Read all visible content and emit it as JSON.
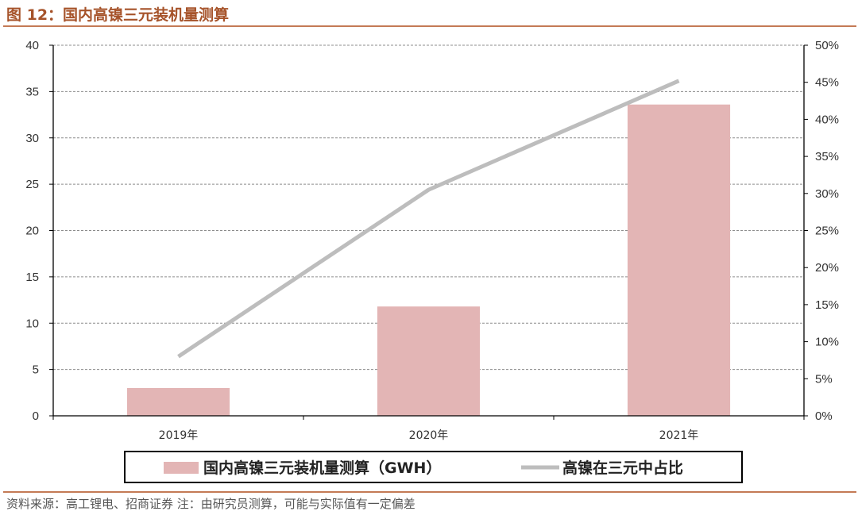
{
  "figure": {
    "title": "图 12：国内高镍三元装机量测算",
    "source": "资料来源：高工锂电、招商证券 注：由研究员测算，可能与实际值有一定偏差"
  },
  "colors": {
    "title": "#a6532a",
    "rule": "#c47a55",
    "bar": "#e3b5b5",
    "line": "#bdbdbd"
  },
  "chart_data": {
    "type": "bar",
    "categories": [
      "2019年",
      "2020年",
      "2021年"
    ],
    "series": [
      {
        "name": "国内高镍三元装机量测算（GWH）",
        "type": "bar",
        "axis": "left",
        "values": [
          3.0,
          11.8,
          33.6
        ]
      },
      {
        "name": "高镍在三元中占比",
        "type": "line",
        "axis": "right",
        "values": [
          8,
          30.5,
          45.2
        ]
      }
    ],
    "y_left": {
      "min": 0,
      "max": 40,
      "ticks": [
        0,
        5,
        10,
        15,
        20,
        25,
        30,
        35,
        40
      ],
      "tick_labels": [
        "0",
        "5",
        "10",
        "15",
        "20",
        "25",
        "30",
        "35",
        "40"
      ]
    },
    "y_right": {
      "min": 0,
      "max": 50,
      "unit": "%",
      "ticks": [
        0,
        5,
        10,
        15,
        20,
        25,
        30,
        35,
        40,
        45,
        50
      ],
      "tick_labels": [
        "0%",
        "5%",
        "10%",
        "15%",
        "20%",
        "25%",
        "30%",
        "35%",
        "40%",
        "45%",
        "50%"
      ]
    },
    "grid": true,
    "grid_style": "dashed",
    "legend_position": "bottom"
  }
}
